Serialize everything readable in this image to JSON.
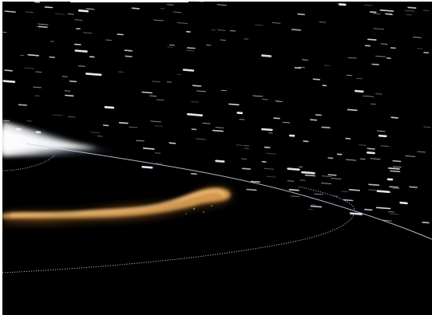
{
  "scene": {
    "subject": "space-photograph",
    "colors": {
      "sky": "#000000",
      "frame": "#ffffff",
      "star": "#e8edf5",
      "glare": "#ffffff",
      "plume_core": "#f4c27a",
      "plume_glow": "#c27a2a",
      "orbit_line": "#b9c9e6"
    }
  }
}
